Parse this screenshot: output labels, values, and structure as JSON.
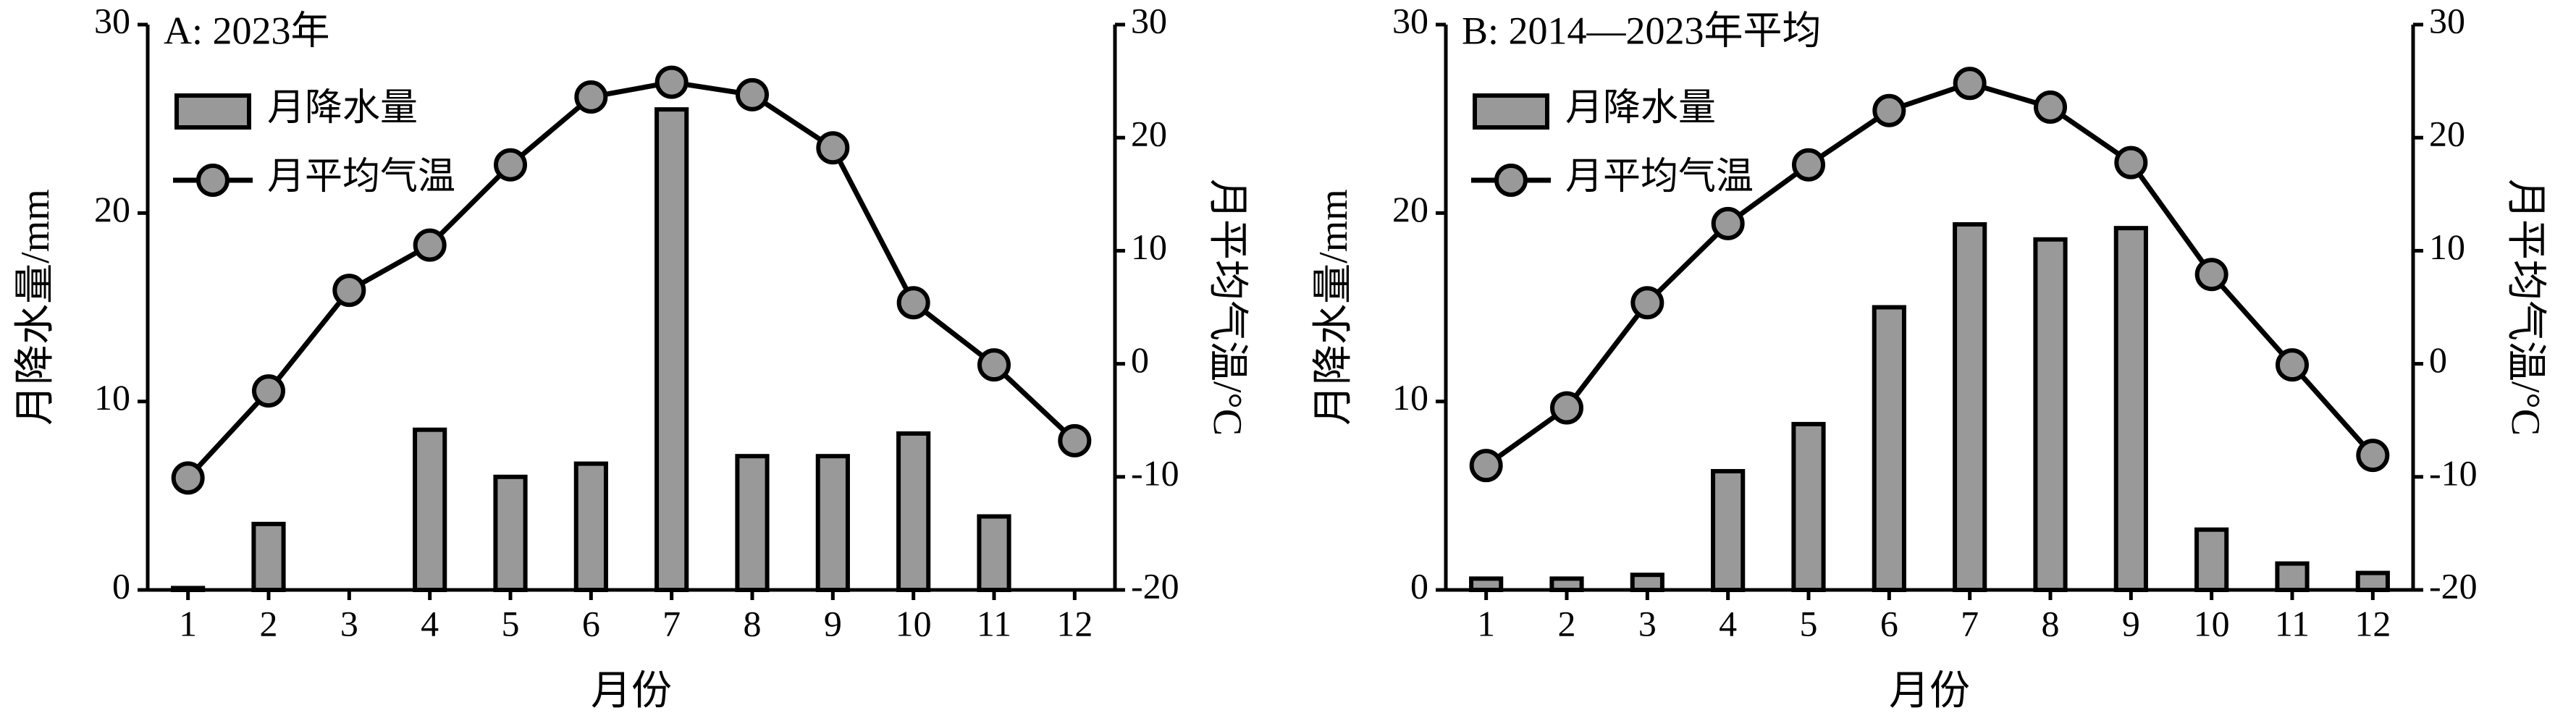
{
  "chart_data": [
    {
      "type": "combo",
      "title": "A: 2023年",
      "x_label": "月份",
      "y_label": "月降水量/mm",
      "y2_label": "月平均气温/°C",
      "categories": [
        "1",
        "2",
        "3",
        "4",
        "5",
        "6",
        "7",
        "8",
        "9",
        "10",
        "11",
        "12"
      ],
      "ylim": [
        0,
        30
      ],
      "yticks": [
        0,
        10,
        20,
        30
      ],
      "y2lim": [
        -20,
        30
      ],
      "y2ticks": [
        -20,
        -10,
        0,
        10,
        20,
        30
      ],
      "legend": "upper left",
      "series": [
        {
          "name": "月降水量",
          "kind": "bar",
          "color": "#999999",
          "values": [
            0.1,
            3.5,
            0,
            8.5,
            6.0,
            6.7,
            25.5,
            7.1,
            7.1,
            8.3,
            3.9,
            0
          ]
        },
        {
          "name": "月平均气温",
          "kind": "line",
          "axis": "y2",
          "color": "#999999",
          "values": [
            -10.1,
            -2.4,
            6.5,
            10.5,
            17.6,
            23.6,
            24.9,
            23.8,
            19.1,
            5.4,
            -0.1,
            -6.8
          ]
        }
      ]
    },
    {
      "type": "combo",
      "title": "B: 2014—2023年平均",
      "x_label": "月份",
      "y_label": "月降水量/mm",
      "y2_label": "月平均气温/°C",
      "categories": [
        "1",
        "2",
        "3",
        "4",
        "5",
        "6",
        "7",
        "8",
        "9",
        "10",
        "11",
        "12"
      ],
      "ylim": [
        0,
        30
      ],
      "yticks": [
        0,
        10,
        20,
        30
      ],
      "y2lim": [
        -20,
        30
      ],
      "y2ticks": [
        -20,
        -10,
        0,
        10,
        20,
        30
      ],
      "legend": "upper left",
      "series": [
        {
          "name": "月降水量",
          "kind": "bar",
          "color": "#999999",
          "values": [
            0.6,
            0.6,
            0.8,
            6.3,
            8.8,
            15.0,
            19.4,
            18.6,
            19.2,
            3.2,
            1.4,
            0.9
          ]
        },
        {
          "name": "月平均气温",
          "kind": "line",
          "axis": "y2",
          "color": "#999999",
          "values": [
            -9.0,
            -3.9,
            5.4,
            12.4,
            17.6,
            22.4,
            24.8,
            22.7,
            17.8,
            7.9,
            -0.1,
            -8.1
          ]
        }
      ]
    }
  ]
}
